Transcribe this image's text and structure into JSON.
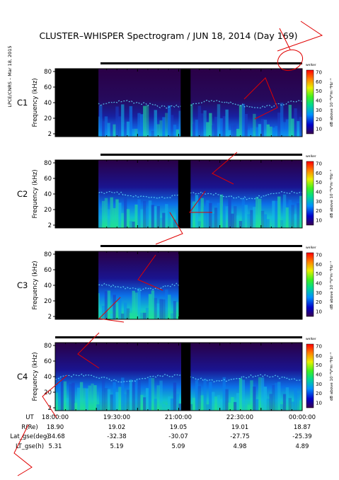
{
  "chart_data": {
    "type": "heatmap",
    "title": "CLUSTER–WHISPER Spectrogram / JUN 18, 2014 (Day 169)",
    "side_label": "LPCE/CNRS – Mar 18, 2015",
    "ylabel": "Frequency (kHz)",
    "y_ticks": [
      "80",
      "60",
      "40",
      "20",
      "2"
    ],
    "ylim": [
      2,
      80
    ],
    "colorbar": {
      "label": "dB above 10⁻⁸V²m⁻²Hz⁻¹",
      "tick_labels": [
        "70",
        "60",
        "50",
        "40",
        "30",
        "20",
        "10"
      ],
      "range": [
        5,
        72
      ],
      "corner_label": "welker",
      "colors": [
        "#3a0050",
        "#0000c8",
        "#0090ff",
        "#00d890",
        "#40f020",
        "#e8f000",
        "#ff8000",
        "#ff0000"
      ]
    },
    "panels": [
      {
        "name": "C1",
        "label_color": "#000000"
      },
      {
        "name": "C2",
        "label_color": "#000000"
      },
      {
        "name": "C3",
        "label_color": "#00cc00"
      },
      {
        "name": "C4",
        "label_color": "#000000"
      }
    ],
    "x_ticks": [
      "18:00:00",
      "19:30:00",
      "21:00:00",
      "22:30:00",
      "00:00:00"
    ],
    "orbit_table": [
      {
        "label": "UT",
        "values": [
          "18:00:00",
          "19:30:00",
          "21:00:00",
          "22:30:00",
          "00:00:00"
        ]
      },
      {
        "label": "R(Re)",
        "values": [
          "18.90",
          "19.02",
          "19.05",
          "19.01",
          "18.87"
        ]
      },
      {
        "label": "Lat_gse(deg)",
        "values": [
          "-34.68",
          "-32.38",
          "-30.07",
          "-27.75",
          "-25.39"
        ]
      },
      {
        "label": "LT_gse(h)",
        "values": [
          "5.31",
          "5.19",
          "5.09",
          "4.98",
          "4.89"
        ]
      }
    ]
  }
}
